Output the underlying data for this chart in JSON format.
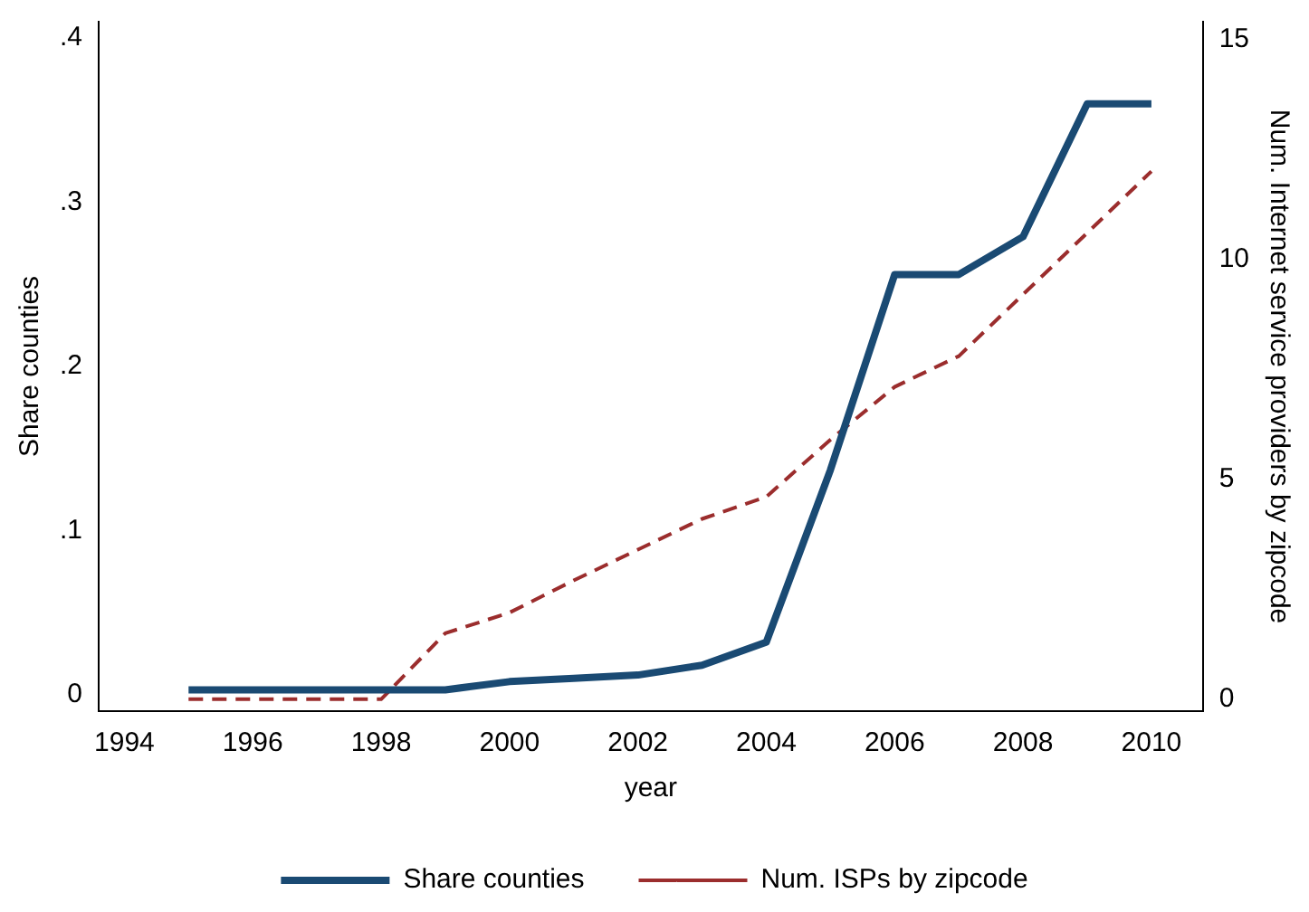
{
  "chart_data": {
    "type": "line",
    "xlabel": "year",
    "ylabel": "Share counties",
    "y2label": "Num. Internet service providers by zipcode",
    "x": [
      1995,
      1996,
      1997,
      1998,
      1999,
      2000,
      2001,
      2002,
      2003,
      2004,
      2005,
      2006,
      2007,
      2008,
      2009,
      2010
    ],
    "series": [
      {
        "name": "Share counties",
        "color": "#1a4a73",
        "line_style": "solid",
        "values": [
          0.003,
          0.003,
          0.003,
          0.003,
          0.003,
          0.008,
          0.01,
          0.012,
          0.018,
          0.032,
          0.137,
          0.256,
          0.256,
          0.279,
          0.36,
          0.36
        ]
      },
      {
        "name": "Num. ISPs by zipcode",
        "color": "#9b2d2d",
        "line_style": "dashed",
        "axis": "y2",
        "values": [
          0,
          0,
          0,
          0,
          1.5,
          1.97,
          2.7,
          3.4,
          4.1,
          4.6,
          5.9,
          7.1,
          7.8,
          9.2,
          10.6,
          12.0
        ]
      }
    ],
    "xlim": [
      1993.6,
      2010.8
    ],
    "xticks": [
      1994,
      1996,
      1998,
      2000,
      2002,
      2004,
      2006,
      2008,
      2010
    ],
    "ylim": [
      -0.01,
      0.41
    ],
    "yticks": [
      {
        "value": 0,
        "label": "0"
      },
      {
        "value": 0.1,
        "label": ".1"
      },
      {
        "value": 0.2,
        "label": ".2"
      },
      {
        "value": 0.3,
        "label": ".3"
      },
      {
        "value": 0.4,
        "label": ".4"
      }
    ],
    "y2lim": [
      -0.27,
      15.4
    ],
    "y2ticks": [
      0,
      5,
      10,
      15
    ],
    "grid": false,
    "legend": "bottom",
    "marker": "none"
  }
}
